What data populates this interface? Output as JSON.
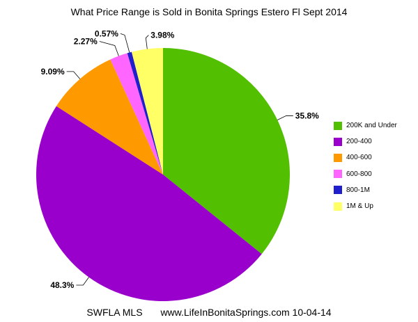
{
  "footer": {
    "source": "SWFLA MLS",
    "site": "www.LifeInBonitaSprings.com 10-04-14"
  },
  "chart_data": {
    "type": "pie",
    "title": "What Price Range is Sold in Bonita Springs Estero Fl Sept 2014",
    "start_angle": "12 o'clock, clockwise",
    "legend_position": "right",
    "slices": [
      {
        "label": "200K and Under",
        "value": 35.8,
        "value_label": "35.8%",
        "color": "#52bf00"
      },
      {
        "label": "200-400",
        "value": 48.3,
        "value_label": "48.3%",
        "color": "#9900cc"
      },
      {
        "label": "400-600",
        "value": 9.09,
        "value_label": "9.09%",
        "color": "#ff9900"
      },
      {
        "label": "600-800",
        "value": 2.27,
        "value_label": "2.27%",
        "color": "#ff66ff"
      },
      {
        "label": "800-1M",
        "value": 0.57,
        "value_label": "0.57%",
        "color": "#1f1fcc"
      },
      {
        "label": "1M & Up",
        "value": 3.98,
        "value_label": "3.98%",
        "color": "#ffff66"
      }
    ]
  }
}
